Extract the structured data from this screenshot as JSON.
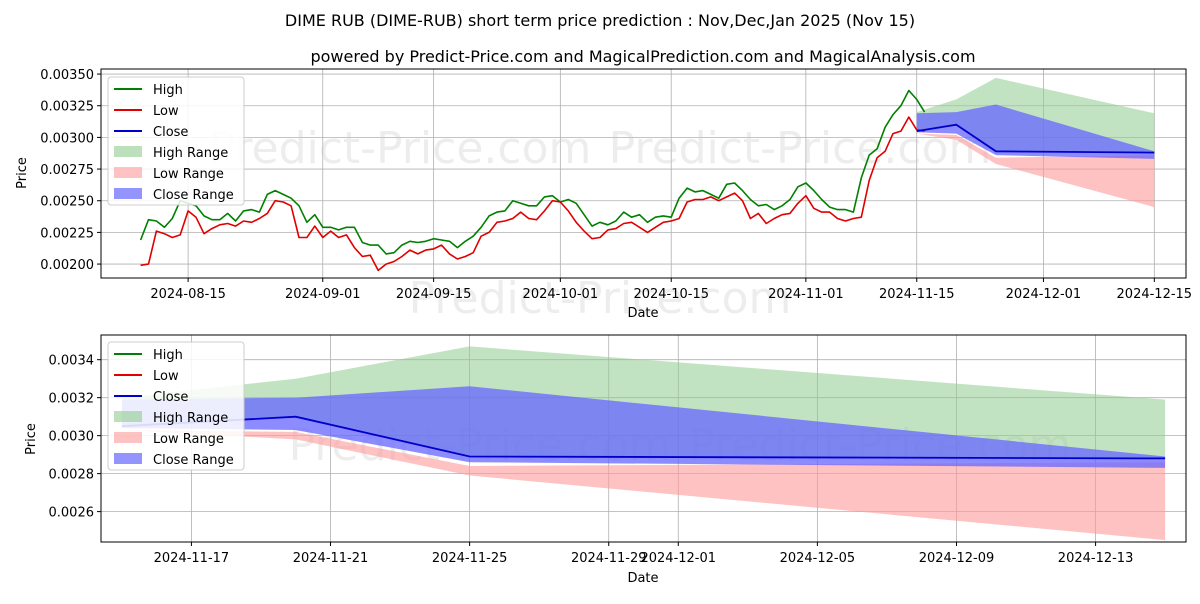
{
  "colors": {
    "high": "#008000",
    "low": "#e00000",
    "close": "#0000cc",
    "high_range": "#8fcc8f",
    "low_range": "#ff9a9a",
    "close_range": "#6666ff",
    "grid": "#b0b0b0"
  },
  "chart_data": {
    "title": "DIME RUB (DIME-RUB) short term price prediction : Nov,Dec,Jan 2025 (Nov 15)",
    "subtitle": "powered by Predict-Price.com and MagicalPrediction.com and MagicalAnalysis.com",
    "watermark": "Predict-Price.com",
    "legend": {
      "high": "High",
      "low": "Low",
      "close": "Close",
      "high_range": "High Range",
      "low_range": "Low Range",
      "close_range": "Close Range"
    },
    "charts": [
      {
        "type": "line",
        "xlabel": "Date",
        "ylabel": "Price",
        "xlim": [
          "2024-08-04",
          "2024-12-19"
        ],
        "ylim": [
          0.00189,
          0.00354
        ],
        "x_ticks": [
          "2024-08-15",
          "2024-09-01",
          "2024-09-15",
          "2024-10-01",
          "2024-10-15",
          "2024-11-01",
          "2024-11-15",
          "2024-12-01",
          "2024-12-15"
        ],
        "y_ticks": [
          "0.00200",
          "0.00225",
          "0.00250",
          "0.00275",
          "0.00300",
          "0.00325",
          "0.00350"
        ],
        "history": {
          "start": "2024-08-09",
          "high": [
            0.00219,
            0.00235,
            0.00234,
            0.00229,
            0.00236,
            0.0025,
            0.00248,
            0.00246,
            0.00238,
            0.00235,
            0.00235,
            0.0024,
            0.00234,
            0.00242,
            0.00243,
            0.00241,
            0.00255,
            0.00258,
            0.00255,
            0.00252,
            0.00246,
            0.00233,
            0.00239,
            0.00229,
            0.00229,
            0.00227,
            0.00229,
            0.00229,
            0.00217,
            0.00215,
            0.00215,
            0.00208,
            0.00209,
            0.00215,
            0.00218,
            0.00217,
            0.00218,
            0.0022,
            0.00219,
            0.00218,
            0.00213,
            0.00218,
            0.00222,
            0.00229,
            0.00238,
            0.00241,
            0.00242,
            0.0025,
            0.00248,
            0.00246,
            0.00246,
            0.00253,
            0.00254,
            0.00249,
            0.00251,
            0.00248,
            0.00239,
            0.0023,
            0.00233,
            0.00231,
            0.00234,
            0.00241,
            0.00237,
            0.00239,
            0.00233,
            0.00237,
            0.00238,
            0.00237,
            0.00252,
            0.0026,
            0.00257,
            0.00258,
            0.00255,
            0.00252,
            0.00263,
            0.00264,
            0.00258,
            0.00251,
            0.00246,
            0.00247,
            0.00243,
            0.00246,
            0.00251,
            0.00261,
            0.00264,
            0.00258,
            0.00251,
            0.00245,
            0.00243,
            0.00243,
            0.00241,
            0.00268,
            0.00286,
            0.00291,
            0.00308,
            0.00318,
            0.00325,
            0.00337,
            0.0033,
            0.0032
          ],
          "low": [
            0.00199,
            0.002,
            0.00226,
            0.00224,
            0.00221,
            0.00223,
            0.00242,
            0.00237,
            0.00224,
            0.00228,
            0.00231,
            0.00232,
            0.0023,
            0.00234,
            0.00233,
            0.00236,
            0.0024,
            0.0025,
            0.00249,
            0.00246,
            0.00221,
            0.00221,
            0.0023,
            0.00221,
            0.00226,
            0.00221,
            0.00223,
            0.00213,
            0.00206,
            0.00207,
            0.00195,
            0.002,
            0.00202,
            0.00206,
            0.00211,
            0.00208,
            0.00211,
            0.00212,
            0.00215,
            0.00208,
            0.00204,
            0.00206,
            0.00209,
            0.00222,
            0.00225,
            0.00233,
            0.00234,
            0.00236,
            0.00241,
            0.00236,
            0.00235,
            0.00242,
            0.0025,
            0.00249,
            0.00242,
            0.00233,
            0.00226,
            0.0022,
            0.00221,
            0.00227,
            0.00228,
            0.00232,
            0.00233,
            0.00229,
            0.00225,
            0.00229,
            0.00233,
            0.00234,
            0.00236,
            0.00249,
            0.00251,
            0.00251,
            0.00253,
            0.0025,
            0.00253,
            0.00256,
            0.0025,
            0.00236,
            0.0024,
            0.00232,
            0.00236,
            0.00239,
            0.0024,
            0.00248,
            0.00254,
            0.00244,
            0.00241,
            0.00241,
            0.00236,
            0.00234,
            0.00236,
            0.00237,
            0.00266,
            0.00284,
            0.00289,
            0.00303,
            0.00305,
            0.00316,
            0.00306,
            0.00305
          ]
        },
        "prediction": {
          "dates": [
            "2024-11-15",
            "2024-11-20",
            "2024-11-25",
            "2024-12-15"
          ],
          "close": [
            0.00305,
            0.0031,
            0.00289,
            0.00288
          ],
          "high_range_upper": [
            0.0032,
            0.0033,
            0.00347,
            0.00319
          ],
          "high_range_lower": [
            0.00305,
            0.0031,
            0.00289,
            0.00288
          ],
          "close_range_upper": [
            0.00319,
            0.0032,
            0.00326,
            0.00289
          ],
          "close_range_lower": [
            0.00304,
            0.00303,
            0.00286,
            0.00283
          ],
          "low_range_upper": [
            0.00303,
            0.00302,
            0.00284,
            0.00286
          ],
          "low_range_lower": [
            0.00303,
            0.00298,
            0.00279,
            0.00245
          ]
        }
      },
      {
        "type": "line",
        "xlabel": "Date",
        "ylabel": "Price",
        "xlim": [
          "2024-11-14.4",
          "2024-12-15.6"
        ],
        "ylim": [
          0.00244,
          0.00353
        ],
        "x_ticks": [
          "2024-11-17",
          "2024-11-21",
          "2024-11-25",
          "2024-11-29",
          "2024-12-01",
          "2024-12-05",
          "2024-12-09",
          "2024-12-13"
        ],
        "y_ticks": [
          "0.0026",
          "0.0028",
          "0.0030",
          "0.0032",
          "0.0034"
        ]
      }
    ]
  }
}
